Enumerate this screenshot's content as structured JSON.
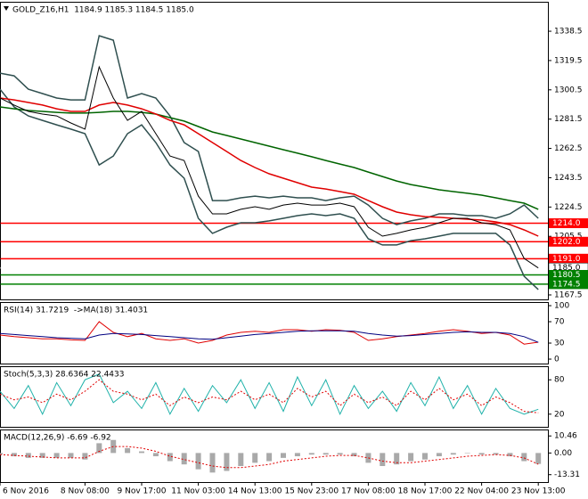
{
  "chart_data": [
    {
      "type": "line",
      "title": "GOLD_Z16,H1  1184.9 1185.3 1184.5 1185.0",
      "categories": [
        "6 Nov 2016",
        null,
        null,
        null,
        null,
        null,
        "8 Nov 08:00",
        null,
        null,
        null,
        "9 Nov 17:00",
        null,
        null,
        null,
        "11 Nov 03:00",
        null,
        null,
        null,
        "14 Nov 13:00",
        null,
        null,
        null,
        "15 Nov 23:00",
        null,
        null,
        null,
        "17 Nov 08:00",
        null,
        null,
        null,
        "18 Nov 17:00",
        null,
        null,
        null,
        "22 Nov 04:00",
        null,
        null,
        null,
        "23 Nov 13:00"
      ],
      "ylim": [
        1164.6,
        1357.6
      ],
      "yticks": [
        1338.5,
        1319.5,
        1300.5,
        1281.5,
        1262.5,
        1243.5,
        1224.5,
        1205.5,
        1167.5
      ],
      "levels": [
        {
          "value": 1214,
          "label": "1214.0",
          "color": "#ff0000"
        },
        {
          "value": 1202,
          "label": "1202.0",
          "color": "#ff0000"
        },
        {
          "value": 1191,
          "label": "1191.0",
          "color": "#ff0000"
        },
        {
          "value": 1185,
          "label": "1185.0",
          "color": "#ffffff"
        },
        {
          "value": 1180.5,
          "label": "1180.5",
          "color": "#008000"
        },
        {
          "value": 1174.5,
          "label": "1174.5",
          "color": "#008000"
        }
      ],
      "series": [
        {
          "color": "#2f4f4f",
          "values": [
            1311.3,
            1309.6,
            1300.9,
            1298.1,
            1295.2,
            1294.0,
            1294.0,
            1335.6,
            1332.7,
            1295.2,
            1298.1,
            1295.2,
            1283.6,
            1266.3,
            1260.5,
            1228.7,
            1228.7,
            1230.5,
            1231.6,
            1230.5,
            1231.6,
            1230.5,
            1230.5,
            1228.7,
            1230.5,
            1231.6,
            1225.8,
            1217.2,
            1213.1,
            1215.5,
            1217.2,
            1220.1,
            1220.1,
            1218.9,
            1218.9,
            1217.2,
            1220.1,
            1225.8,
            1217.2
          ]
        },
        {
          "color": "#2f4f4f",
          "values": [
            1300.9,
            1289.4,
            1283.6,
            1280.7,
            1277.8,
            1275.0,
            1272.1,
            1251.8,
            1257.6,
            1272.1,
            1277.8,
            1266.3,
            1251.8,
            1243.2,
            1217.2,
            1207.4,
            1211.4,
            1214.3,
            1214.3,
            1215.5,
            1217.2,
            1218.9,
            1220.1,
            1218.9,
            1220.1,
            1217.2,
            1203.9,
            1199.9,
            1199.9,
            1202.7,
            1203.9,
            1205.6,
            1207.4,
            1207.4,
            1207.4,
            1207.4,
            1199.9,
            1179.6,
            1171.0
          ]
        },
        {
          "color": "#006400",
          "values": [
            1289.4,
            1288.2,
            1287.1,
            1286.5,
            1285.9,
            1285.4,
            1285.4,
            1285.9,
            1286.5,
            1286.5,
            1285.9,
            1284.8,
            1282.5,
            1280.2,
            1276.7,
            1273.2,
            1270.9,
            1268.6,
            1266.3,
            1264.0,
            1261.7,
            1259.4,
            1257.1,
            1254.7,
            1252.4,
            1250.1,
            1247.2,
            1244.3,
            1241.4,
            1239.1,
            1237.4,
            1235.7,
            1234.5,
            1233.4,
            1232.2,
            1230.5,
            1228.7,
            1227.0,
            1223.0
          ]
        },
        {
          "color": "#e00000",
          "values": [
            1295.2,
            1294.0,
            1292.3,
            1290.6,
            1288.2,
            1286.5,
            1286.5,
            1290.6,
            1292.3,
            1290.6,
            1288.2,
            1284.8,
            1280.7,
            1277.8,
            1272.1,
            1266.3,
            1260.5,
            1254.7,
            1250.1,
            1246.1,
            1243.2,
            1240.3,
            1237.4,
            1236.2,
            1234.5,
            1232.8,
            1228.7,
            1224.7,
            1221.2,
            1219.5,
            1218.3,
            1217.8,
            1217.2,
            1216.6,
            1216.0,
            1214.9,
            1213.1,
            1209.7,
            1205.6
          ]
        },
        {
          "color": "#000000",
          "values": [
            1295.2,
            1290.6,
            1286.5,
            1284.8,
            1283.6,
            1279.0,
            1275.0,
            1315.4,
            1295.2,
            1280.7,
            1286.5,
            1272.1,
            1257.6,
            1254.7,
            1231.6,
            1220.1,
            1220.1,
            1223.0,
            1224.7,
            1223.0,
            1225.8,
            1227.0,
            1225.8,
            1225.8,
            1227.0,
            1224.7,
            1211.4,
            1205.6,
            1207.4,
            1209.7,
            1211.4,
            1214.3,
            1217.2,
            1217.2,
            1214.3,
            1213.1,
            1209.7,
            1191.2,
            1185.0
          ]
        }
      ]
    },
    {
      "type": "line",
      "title": "RSI(14) 31.7219  ->MA(18) 31.4031",
      "ylim": [
        -8.3,
        106.7
      ],
      "yticks": [
        100,
        70,
        30,
        0
      ],
      "series": [
        {
          "color": "#e00000",
          "values": [
            45,
            42,
            40,
            38,
            38,
            36,
            35,
            70,
            50,
            42,
            48,
            38,
            35,
            38,
            30,
            35,
            45,
            50,
            52,
            50,
            55,
            55,
            52,
            55,
            54,
            50,
            35,
            38,
            42,
            45,
            48,
            52,
            55,
            52,
            48,
            50,
            45,
            28,
            31.7
          ]
        },
        {
          "color": "#000080",
          "values": [
            48,
            46,
            44,
            42,
            40,
            39,
            38,
            45,
            48,
            47,
            46,
            44,
            42,
            40,
            38,
            37,
            40,
            43,
            46,
            48,
            50,
            52,
            53,
            53,
            53,
            52,
            48,
            45,
            43,
            44,
            46,
            48,
            50,
            51,
            50,
            50,
            48,
            42,
            31.4
          ]
        }
      ]
    },
    {
      "type": "line",
      "title": "Stoch(5,3,3) 28.6364 22.4433",
      "ylim": [
        -2.1,
        103.7
      ],
      "yticks": [
        80,
        20
      ],
      "series": [
        {
          "color": "#20b2aa",
          "values": [
            60,
            30,
            70,
            20,
            75,
            35,
            80,
            90,
            40,
            60,
            30,
            75,
            20,
            65,
            25,
            70,
            40,
            80,
            30,
            75,
            25,
            85,
            35,
            80,
            20,
            70,
            30,
            60,
            25,
            75,
            35,
            85,
            30,
            70,
            20,
            65,
            30,
            20,
            28.6
          ]
        },
        {
          "color": "#e00000",
          "dash": true,
          "values": [
            55,
            45,
            50,
            40,
            55,
            45,
            60,
            80,
            60,
            55,
            45,
            55,
            35,
            50,
            40,
            50,
            45,
            60,
            45,
            55,
            40,
            65,
            50,
            60,
            35,
            55,
            40,
            50,
            35,
            60,
            45,
            65,
            45,
            55,
            35,
            50,
            40,
            25,
            22.4
          ]
        }
      ]
    },
    {
      "type": "bar",
      "title": "MACD(12,26,9) -6.69 -6.92",
      "ylim": [
        -17.84,
        14.42
      ],
      "yticks": [
        10.46,
        {
          "value": 0,
          "label": "0.00"
        },
        -13.31
      ],
      "color": "#a9a9a9",
      "values": [
        -1,
        -2,
        -3,
        -3,
        -3,
        -3,
        -4,
        6,
        8,
        3,
        1,
        -2,
        -5,
        -7,
        -10,
        -12,
        -11,
        -8,
        -6,
        -5,
        -3,
        -2,
        -1,
        -1,
        -1,
        -2,
        -6,
        -8,
        -7,
        -5,
        -4,
        -2,
        -1,
        0,
        -1,
        -1,
        -2,
        -5,
        -6.69
      ],
      "series": [
        {
          "color": "#e00000",
          "dash": true,
          "values": [
            -1,
            -1.5,
            -2,
            -2.5,
            -3,
            -3,
            -3,
            1,
            4,
            4,
            3,
            1,
            -2,
            -4,
            -6,
            -8,
            -9,
            -9,
            -8,
            -7,
            -5,
            -4,
            -3,
            -2,
            -1.5,
            -1.5,
            -3,
            -5,
            -6,
            -6,
            -5,
            -4,
            -3,
            -2,
            -1.5,
            -1,
            -1.5,
            -3,
            -6.92
          ]
        }
      ]
    }
  ]
}
